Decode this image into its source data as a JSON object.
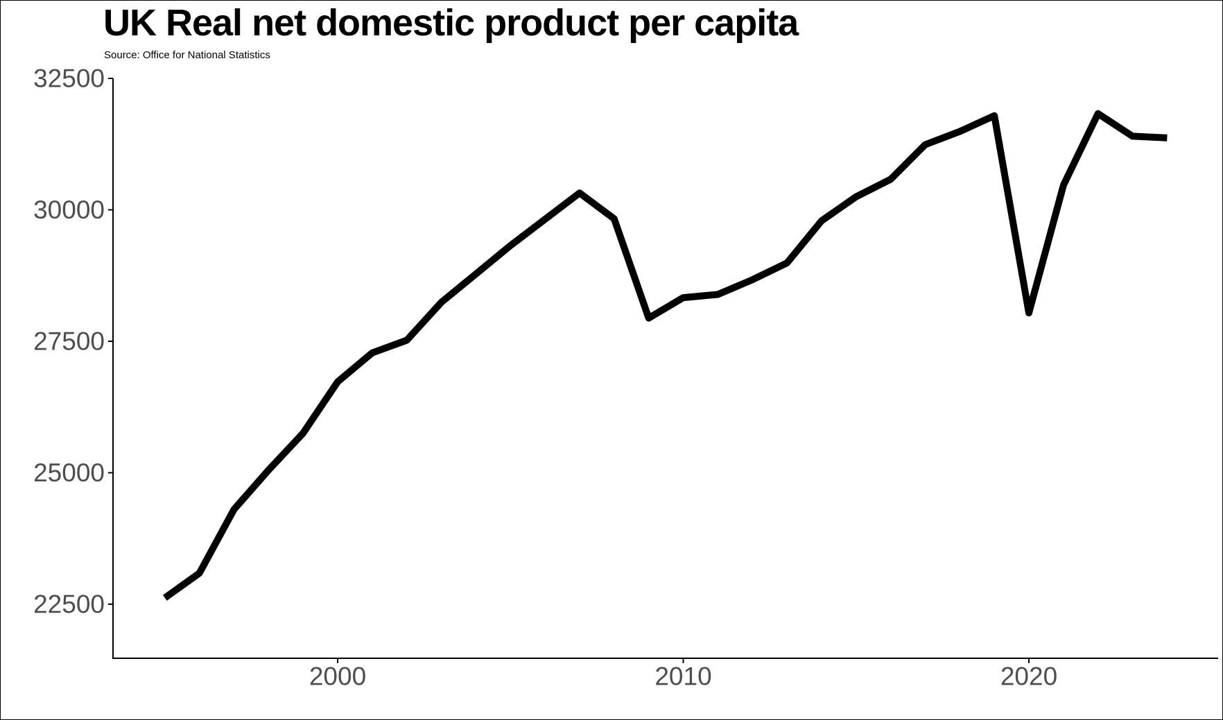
{
  "chart_data": {
    "type": "line",
    "title": "UK Real net domestic product per capita",
    "subtitle": "Source: Office for National Statistics",
    "xlabel": "",
    "ylabel": "",
    "x": [
      1995,
      1996,
      1997,
      1998,
      1999,
      2000,
      2001,
      2002,
      2003,
      2004,
      2005,
      2006,
      2007,
      2008,
      2009,
      2010,
      2011,
      2012,
      2013,
      2014,
      2015,
      2016,
      2017,
      2018,
      2019,
      2020,
      2021,
      2022,
      2023,
      2024
    ],
    "series": [
      {
        "name": "Real net domestic product per capita",
        "values": [
          22620,
          23090,
          24300,
          25050,
          25750,
          26730,
          27280,
          27520,
          28240,
          28780,
          29320,
          29820,
          30320,
          29830,
          27940,
          28330,
          28390,
          28670,
          28990,
          29790,
          30250,
          30580,
          31240,
          31490,
          31790,
          28040,
          30470,
          31830,
          31400,
          31370
        ]
      }
    ],
    "x_ticks": [
      2000,
      2010,
      2020
    ],
    "y_ticks": [
      22500,
      25000,
      27500,
      30000,
      32500
    ],
    "xlim": [
      1993.5,
      2025.5
    ],
    "ylim": [
      21470,
      32500
    ],
    "grid": false,
    "legend": "none",
    "line_color": "#000000",
    "axis_color": "#000000",
    "tick_label_color": "#4d4d4d",
    "background_color": "#ffffff"
  }
}
